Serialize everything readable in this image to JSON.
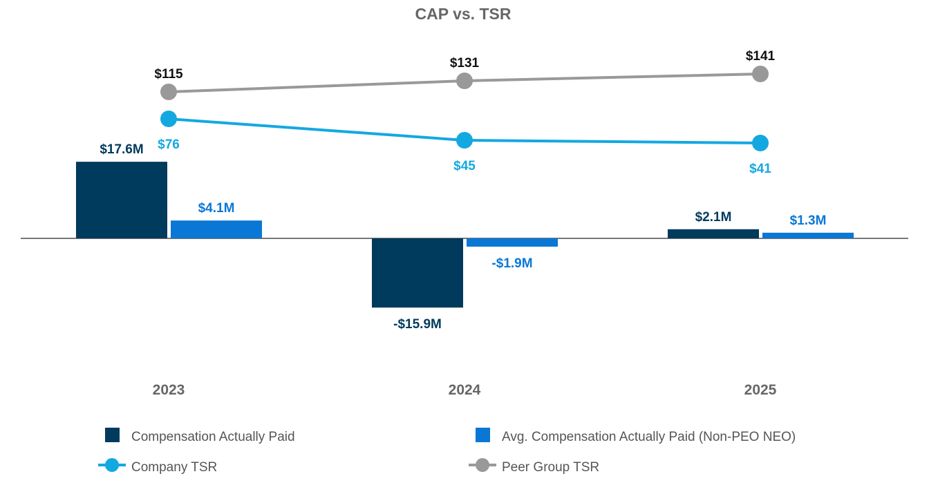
{
  "colors": {
    "cap": "#003a5c",
    "avg_cap": "#0a77d4",
    "company_tsr": "#14a8e0",
    "peer_tsr": "#999999",
    "title_text": "#666666",
    "year_text": "#666666",
    "legend_text": "#555555",
    "baseline": "#777777"
  },
  "chart_data": {
    "type": "bar",
    "title": "CAP vs. TSR",
    "categories": [
      "2023",
      "2024",
      "2025"
    ],
    "series": [
      {
        "name": "Compensation Actually Paid",
        "kind": "bar",
        "values": [
          17.6,
          -15.9,
          2.1
        ],
        "labels": [
          "$17.6M",
          "-$15.9M",
          "$2.1M"
        ]
      },
      {
        "name": "Avg. Compensation Actually Paid (Non-PEO NEO)",
        "kind": "bar",
        "values": [
          4.1,
          -1.9,
          1.3
        ],
        "labels": [
          "$4.1M",
          "-$1.9M",
          "$1.3M"
        ]
      },
      {
        "name": "Company TSR",
        "kind": "line",
        "values": [
          76,
          45,
          41
        ],
        "labels": [
          "$76",
          "$45",
          "$41"
        ]
      },
      {
        "name": "Peer Group TSR",
        "kind": "line",
        "values": [
          115,
          131,
          141
        ],
        "labels": [
          "$115",
          "$131",
          "$141"
        ]
      }
    ],
    "legend_position": "bottom",
    "grid": false
  }
}
